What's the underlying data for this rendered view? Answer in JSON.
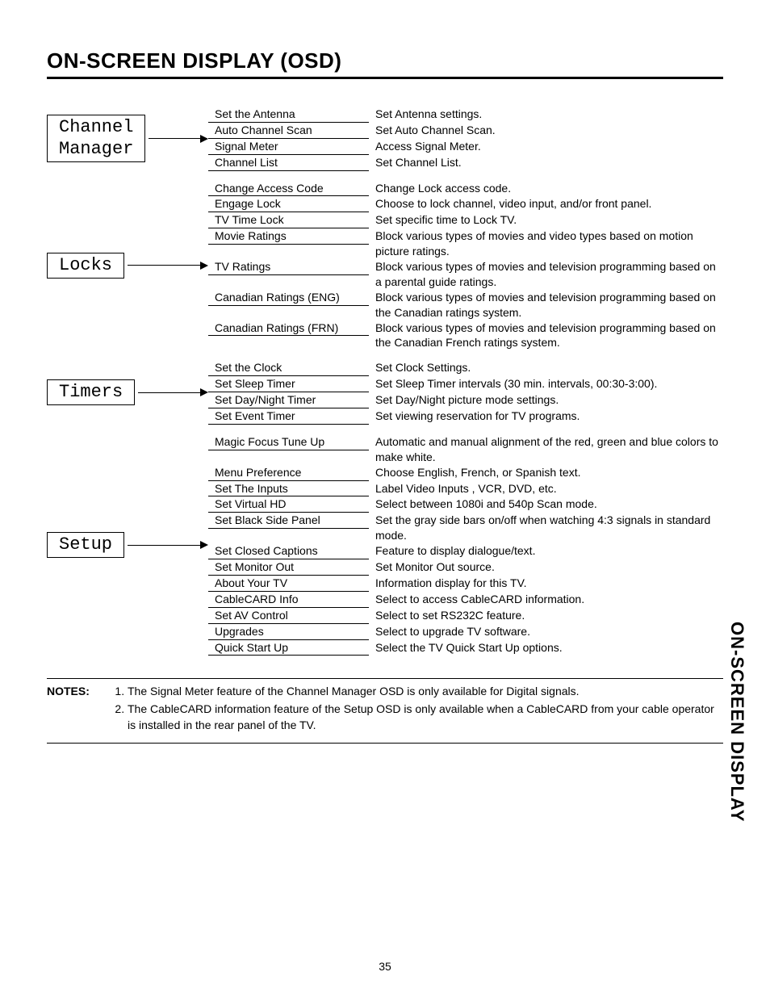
{
  "page": {
    "title": "ON-SCREEN DISPLAY (OSD)",
    "side_tab": "ON-SCREEN DISPLAY",
    "number": "35"
  },
  "sections": [
    {
      "category": "Channel\nManager",
      "rows": [
        {
          "item": "Set the Antenna",
          "desc": "Set Antenna settings."
        },
        {
          "item": "Auto Channel Scan",
          "desc": "Set Auto Channel Scan."
        },
        {
          "item": "Signal Meter",
          "desc": "Access Signal Meter."
        },
        {
          "item": "Channel List",
          "desc": "Set Channel List."
        }
      ]
    },
    {
      "category": "Locks",
      "rows": [
        {
          "item": "Change Access Code",
          "desc": "Change Lock access code."
        },
        {
          "item": "Engage Lock",
          "desc": "Choose to lock channel, video input, and/or front panel."
        },
        {
          "item": "TV Time Lock",
          "desc": "Set specific time to Lock TV."
        },
        {
          "item": "Movie Ratings",
          "desc": "Block various types of movies and video types based on motion picture ratings."
        },
        {
          "item": "TV Ratings",
          "desc": "Block various types of movies and television programming based on a parental guide ratings."
        },
        {
          "item": "Canadian Ratings (ENG)",
          "desc": "Block various types of movies and television programming based on the Canadian ratings system."
        },
        {
          "item": "Canadian Ratings (FRN)",
          "desc": "Block various types of movies and television programming based on the Canadian French ratings system."
        }
      ]
    },
    {
      "category": "Timers",
      "rows": [
        {
          "item": "Set the Clock",
          "desc": "Set Clock Settings."
        },
        {
          "item": "Set Sleep Timer",
          "desc": "Set Sleep Timer intervals (30 min. intervals, 00:30-3:00)."
        },
        {
          "item": "Set Day/Night Timer",
          "desc": "Set Day/Night picture mode settings."
        },
        {
          "item": "Set Event Timer",
          "desc": "Set viewing reservation for TV programs."
        }
      ]
    },
    {
      "category": "Setup",
      "rows": [
        {
          "item": "Magic Focus Tune Up",
          "desc": "Automatic and manual alignment of the red, green and blue colors to make white."
        },
        {
          "item": "Menu Preference",
          "desc": "Choose English, French, or Spanish text."
        },
        {
          "item": "Set The Inputs",
          "desc": "Label Video Inputs , VCR, DVD, etc."
        },
        {
          "item": "Set Virtual HD",
          "desc": "Select between 1080i and 540p Scan mode."
        },
        {
          "item": "Set Black Side Panel",
          "desc": "Set the gray side bars on/off when watching 4:3 signals in standard mode."
        },
        {
          "item": "Set Closed Captions",
          "desc": "Feature to display dialogue/text."
        },
        {
          "item": "Set Monitor Out",
          "desc": "Set Monitor Out source."
        },
        {
          "item": "About Your TV",
          "desc": "Information display for this TV."
        },
        {
          "item": "CableCARD Info",
          "desc": "Select to access CableCARD information."
        },
        {
          "item": "Set AV Control",
          "desc": "Select to set RS232C feature."
        },
        {
          "item": "Upgrades",
          "desc": "Select to upgrade TV software."
        },
        {
          "item": "Quick Start Up",
          "desc": "Select the TV Quick Start Up options."
        }
      ]
    }
  ],
  "notes": {
    "label": "NOTES:",
    "items": [
      "The Signal Meter feature of the Channel Manager OSD is only available for Digital signals.",
      "The CableCARD information feature of the Setup OSD is only available when a CableCARD from your cable operator is installed in the rear panel of the TV."
    ]
  }
}
